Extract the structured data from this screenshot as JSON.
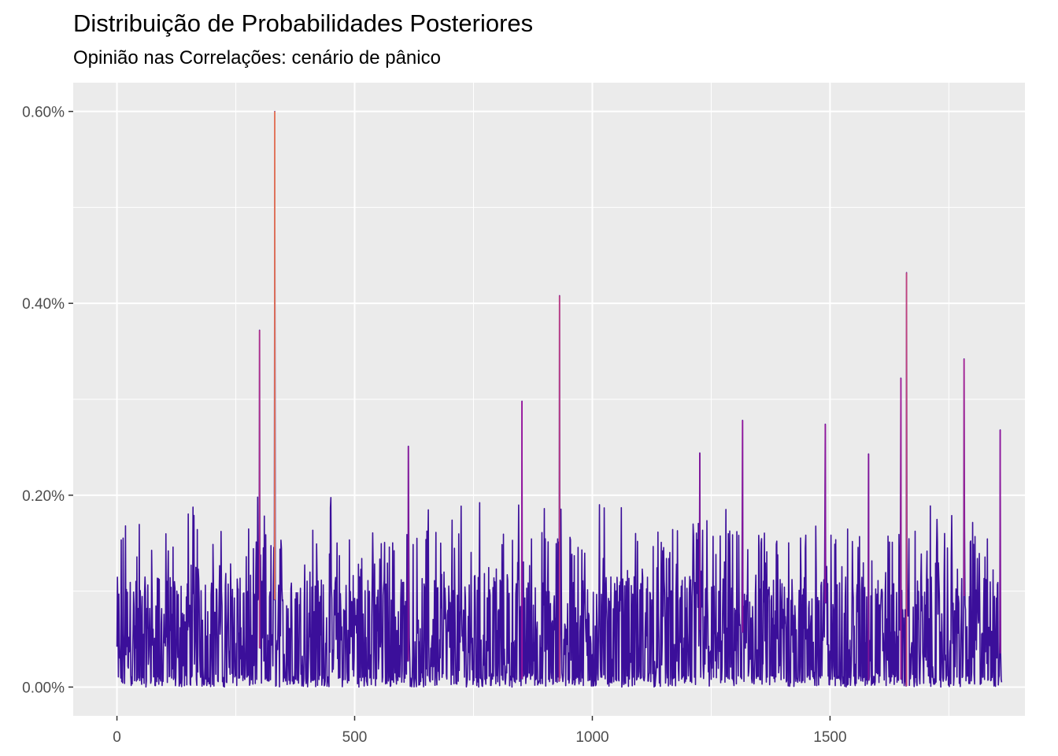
{
  "chart_data": {
    "type": "line",
    "title": "Distribuição de Probabilidades Posteriores",
    "subtitle": "Opinião nas Correlações: cenário de pânico",
    "xlabel": "",
    "ylabel": "",
    "xlim": [
      -92,
      1910
    ],
    "ylim": [
      -0.0003,
      0.0063
    ],
    "x_ticks": [
      0,
      500,
      1000,
      1500
    ],
    "x_tick_labels": [
      "0",
      "500",
      "1000",
      "1500"
    ],
    "y_ticks": [
      0,
      0.002,
      0.004,
      0.006
    ],
    "y_tick_labels": [
      "0.00%",
      "0.20%",
      "0.40%",
      "0.60%"
    ],
    "n_points": 1862,
    "grid": true,
    "legend": "none",
    "color_scale": {
      "low": "#0d0887",
      "mid": "#9c179e",
      "high": "#ed7953"
    },
    "peaks": [
      {
        "x": 300,
        "y": 0.00372
      },
      {
        "x": 332,
        "y": 0.006
      },
      {
        "x": 613,
        "y": 0.00251
      },
      {
        "x": 852,
        "y": 0.00298
      },
      {
        "x": 931,
        "y": 0.00408
      },
      {
        "x": 1226,
        "y": 0.00244
      },
      {
        "x": 1316,
        "y": 0.00278
      },
      {
        "x": 1490,
        "y": 0.00274
      },
      {
        "x": 1581,
        "y": 0.00243
      },
      {
        "x": 1649,
        "y": 0.00322
      },
      {
        "x": 1661,
        "y": 0.00432
      },
      {
        "x": 1782,
        "y": 0.00342
      },
      {
        "x": 1858,
        "y": 0.00268
      }
    ]
  }
}
